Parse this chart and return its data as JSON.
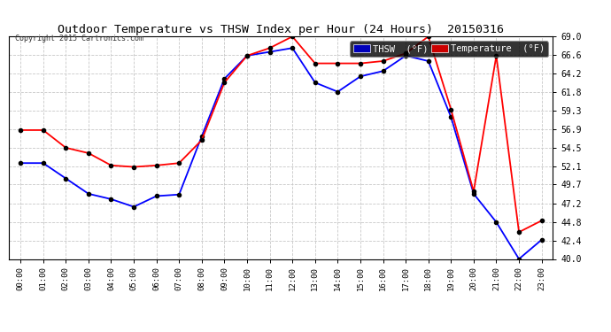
{
  "title": "Outdoor Temperature vs THSW Index per Hour (24 Hours)  20150316",
  "copyright": "Copyright 2015 Cartronics.com",
  "hours": [
    "00:00",
    "01:00",
    "02:00",
    "03:00",
    "04:00",
    "05:00",
    "06:00",
    "07:00",
    "08:00",
    "09:00",
    "10:00",
    "11:00",
    "12:00",
    "13:00",
    "14:00",
    "15:00",
    "16:00",
    "17:00",
    "18:00",
    "19:00",
    "20:00",
    "21:00",
    "22:00",
    "23:00"
  ],
  "thsw": [
    52.5,
    52.5,
    50.5,
    48.5,
    47.8,
    46.8,
    48.2,
    48.4,
    56.0,
    63.5,
    66.5,
    67.0,
    67.5,
    63.0,
    61.8,
    63.8,
    64.5,
    66.5,
    65.8,
    58.5,
    48.5,
    44.8,
    40.0,
    42.5
  ],
  "temp": [
    56.8,
    56.8,
    54.5,
    53.8,
    52.2,
    52.0,
    52.2,
    52.5,
    55.5,
    63.0,
    66.5,
    67.5,
    69.0,
    65.5,
    65.5,
    65.5,
    65.8,
    66.8,
    69.0,
    59.5,
    48.8,
    66.5,
    43.5,
    45.0
  ],
  "ylim_min": 40.0,
  "ylim_max": 69.0,
  "yticks": [
    40.0,
    42.4,
    44.8,
    47.2,
    49.7,
    52.1,
    54.5,
    56.9,
    59.3,
    61.8,
    64.2,
    66.6,
    69.0
  ],
  "thsw_color": "#0000ff",
  "temp_color": "#ff0000",
  "bg_color": "#ffffff",
  "plot_bg_color": "#ffffff",
  "grid_color": "#c8c8c8",
  "title_color": "#000000",
  "legend_thsw_bg": "#0000bb",
  "legend_temp_bg": "#cc0000",
  "legend_text_color": "#ffffff",
  "marker_color": "#000000",
  "marker_size": 3.0,
  "line_width": 1.3
}
